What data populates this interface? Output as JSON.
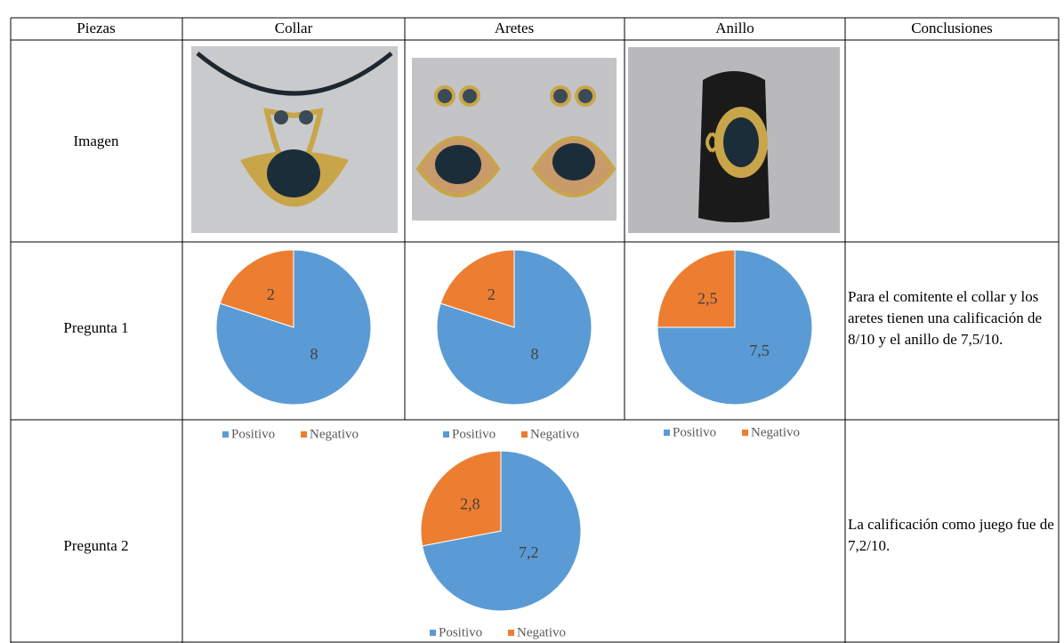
{
  "table": {
    "header": [
      "Piezas",
      "Collar",
      "Aretes",
      "Anillo",
      "Conclusiones"
    ],
    "rows": [
      {
        "label": "Imagen"
      },
      {
        "label": "Pregunta 1",
        "conclusion": "Para el comitente el collar y los aretes tienen una calificación de 8/10 y el anillo de 7,5/10."
      },
      {
        "label": "Pregunta 2",
        "conclusion": "La calificación como juego fue de 7,2/10."
      }
    ]
  },
  "chart_data": [
    {
      "type": "pie",
      "categories": [
        "Positivo",
        "Negativo"
      ],
      "values": [
        8,
        2
      ],
      "colors": [
        "#5b9bd5",
        "#ed7d31"
      ]
    },
    {
      "type": "pie",
      "categories": [
        "Positivo",
        "Negativo"
      ],
      "values": [
        8,
        2
      ],
      "colors": [
        "#5b9bd5",
        "#ed7d31"
      ]
    },
    {
      "type": "pie",
      "categories": [
        "Positivo",
        "Negativo"
      ],
      "values": [
        7.5,
        2.5
      ],
      "value_labels": [
        "7,5",
        "2,5"
      ],
      "colors": [
        "#5b9bd5",
        "#ed7d31"
      ]
    },
    {
      "type": "pie",
      "categories": [
        "Positivo",
        "Negativo"
      ],
      "values": [
        7.2,
        2.8
      ],
      "value_labels": [
        "7,2",
        "2,8"
      ],
      "colors": [
        "#5b9bd5",
        "#ed7d31"
      ]
    }
  ]
}
